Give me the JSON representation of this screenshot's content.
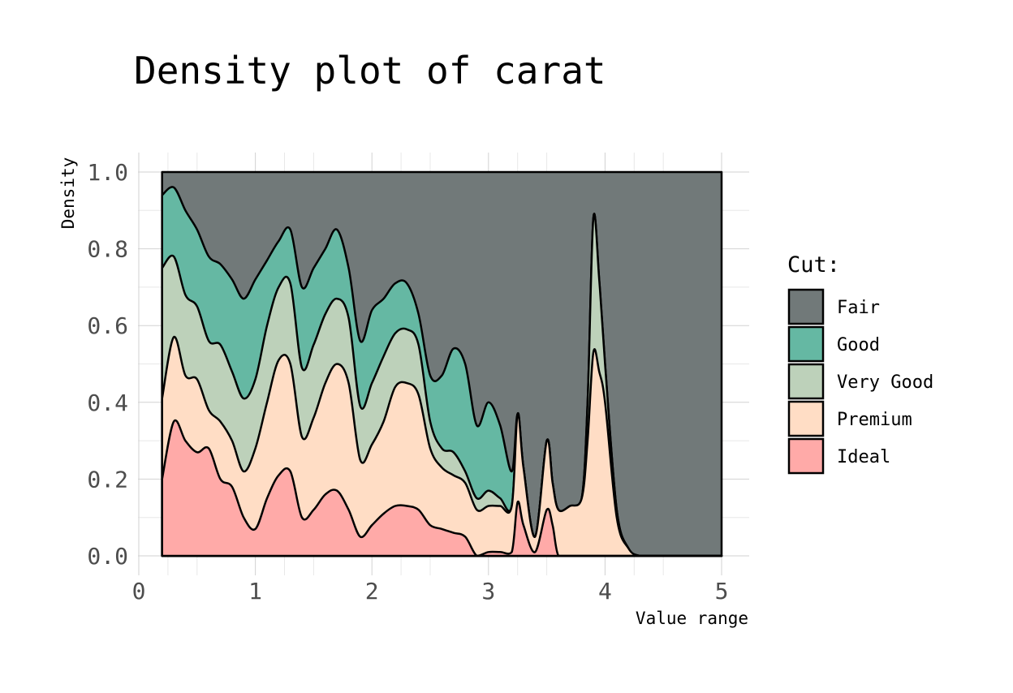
{
  "chart_data": {
    "type": "area",
    "subtype": "stacked-filled-density",
    "title": "Density plot of carat",
    "xlabel": "Value range",
    "ylabel": "Density",
    "xlim": [
      0,
      5
    ],
    "ylim": [
      0,
      1
    ],
    "x_ticks": [
      "0",
      "1",
      "2",
      "3",
      "4",
      "5"
    ],
    "y_ticks": [
      "0.0",
      "0.2",
      "0.4",
      "0.6",
      "0.8",
      "1.0"
    ],
    "grid": true,
    "legend": {
      "title": "Cut:",
      "position": "right"
    },
    "x": [
      0.2,
      0.3,
      0.4,
      0.5,
      0.6,
      0.7,
      0.8,
      0.9,
      1.0,
      1.1,
      1.2,
      1.3,
      1.4,
      1.5,
      1.6,
      1.7,
      1.8,
      1.9,
      2.0,
      2.1,
      2.2,
      2.3,
      2.4,
      2.5,
      2.6,
      2.7,
      2.8,
      2.9,
      3.0,
      3.1,
      3.2,
      3.25,
      3.3,
      3.4,
      3.5,
      3.55,
      3.6,
      3.7,
      3.8,
      3.85,
      3.9,
      3.95,
      4.0,
      4.1,
      4.2,
      4.3,
      4.5,
      5.0
    ],
    "series": [
      {
        "name": "Ideal",
        "color": "#FFAAA8",
        "values": [
          0.2,
          0.35,
          0.3,
          0.27,
          0.28,
          0.2,
          0.18,
          0.1,
          0.07,
          0.15,
          0.21,
          0.22,
          0.1,
          0.12,
          0.16,
          0.17,
          0.12,
          0.05,
          0.08,
          0.11,
          0.13,
          0.13,
          0.12,
          0.08,
          0.07,
          0.06,
          0.05,
          0.0,
          0.01,
          0.01,
          0.01,
          0.14,
          0.08,
          0.01,
          0.12,
          0.08,
          0.0,
          0.0,
          0.0,
          0.0,
          0.0,
          0.0,
          0.0,
          0.0,
          0.0,
          0.0,
          0.0,
          0.0
        ]
      },
      {
        "name": "Premium",
        "color": "#FFDDC5",
        "values": [
          0.41,
          0.57,
          0.47,
          0.46,
          0.38,
          0.35,
          0.3,
          0.22,
          0.28,
          0.4,
          0.51,
          0.5,
          0.31,
          0.36,
          0.45,
          0.5,
          0.45,
          0.25,
          0.29,
          0.35,
          0.44,
          0.45,
          0.42,
          0.28,
          0.23,
          0.21,
          0.19,
          0.12,
          0.13,
          0.13,
          0.13,
          0.37,
          0.23,
          0.05,
          0.3,
          0.19,
          0.12,
          0.13,
          0.15,
          0.3,
          0.53,
          0.48,
          0.4,
          0.1,
          0.02,
          0.0,
          0.0,
          0.0
        ]
      },
      {
        "name": "Very Good",
        "color": "#BDD1BA",
        "values": [
          0.75,
          0.78,
          0.68,
          0.65,
          0.56,
          0.55,
          0.48,
          0.41,
          0.46,
          0.6,
          0.7,
          0.71,
          0.49,
          0.55,
          0.63,
          0.67,
          0.62,
          0.39,
          0.45,
          0.52,
          0.58,
          0.59,
          0.55,
          0.35,
          0.28,
          0.27,
          0.22,
          0.15,
          0.17,
          0.15,
          0.13,
          0.37,
          0.23,
          0.05,
          0.3,
          0.19,
          0.12,
          0.13,
          0.15,
          0.4,
          0.88,
          0.72,
          0.5,
          0.12,
          0.02,
          0.0,
          0.0,
          0.0
        ]
      },
      {
        "name": "Good",
        "color": "#65B8A3",
        "values": [
          0.94,
          0.96,
          0.9,
          0.85,
          0.78,
          0.76,
          0.72,
          0.67,
          0.72,
          0.77,
          0.82,
          0.85,
          0.7,
          0.75,
          0.8,
          0.85,
          0.75,
          0.56,
          0.64,
          0.67,
          0.71,
          0.71,
          0.63,
          0.47,
          0.47,
          0.54,
          0.5,
          0.34,
          0.4,
          0.34,
          0.22,
          0.37,
          0.23,
          0.05,
          0.3,
          0.19,
          0.12,
          0.13,
          0.15,
          0.4,
          0.88,
          0.72,
          0.5,
          0.12,
          0.02,
          0.0,
          0.0,
          0.0
        ]
      },
      {
        "name": "Fair",
        "color": "#717979",
        "values": [
          1.0,
          1.0,
          1.0,
          1.0,
          1.0,
          1.0,
          1.0,
          1.0,
          1.0,
          1.0,
          1.0,
          1.0,
          1.0,
          1.0,
          1.0,
          1.0,
          1.0,
          1.0,
          1.0,
          1.0,
          1.0,
          1.0,
          1.0,
          1.0,
          1.0,
          1.0,
          1.0,
          1.0,
          1.0,
          1.0,
          1.0,
          1.0,
          1.0,
          1.0,
          1.0,
          1.0,
          1.0,
          1.0,
          1.0,
          1.0,
          1.0,
          1.0,
          1.0,
          1.0,
          1.0,
          1.0,
          1.0,
          1.0
        ]
      }
    ]
  }
}
